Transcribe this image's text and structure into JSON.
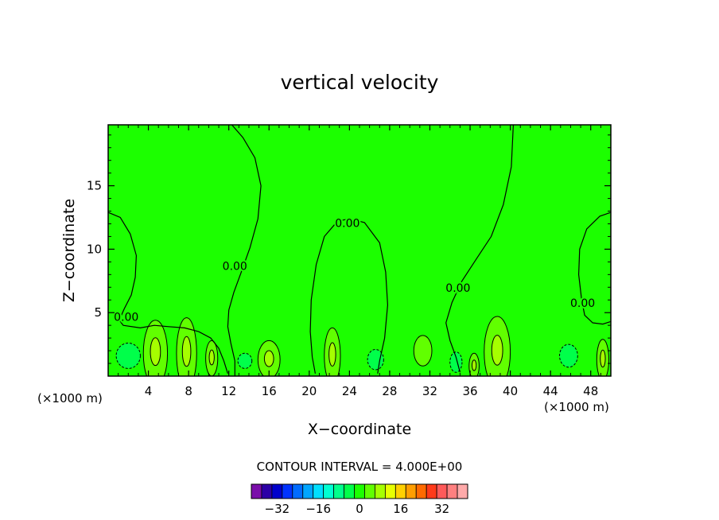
{
  "chart_data": {
    "type": "contour",
    "title": "vertical velocity",
    "xlabel": "X−coordinate",
    "ylabel": "Z−coordinate",
    "x_unit": "(×1000 m)",
    "x_unit_right": "(×1000 m)",
    "xlim": [
      0,
      50
    ],
    "ylim": [
      0,
      19.8
    ],
    "x_ticks": [
      4,
      8,
      12,
      16,
      20,
      24,
      28,
      32,
      36,
      40,
      44,
      48
    ],
    "x_tick_labels": [
      "4",
      "8",
      "12",
      "16",
      "20",
      "24",
      "28",
      "32",
      "36",
      "40",
      "44",
      "48"
    ],
    "y_ticks": [
      5,
      10,
      15
    ],
    "y_tick_labels": [
      "5",
      "10",
      "15"
    ],
    "background_level": 0,
    "contour_labels": [
      {
        "text": "0.00",
        "x": 1.8,
        "y": 4.6
      },
      {
        "text": "0.00",
        "x": 12.6,
        "y": 8.6
      },
      {
        "text": "0.00",
        "x": 23.8,
        "y": 12.0
      },
      {
        "text": "0.00",
        "x": 34.8,
        "y": 6.9
      },
      {
        "text": "0.00",
        "x": 47.2,
        "y": 5.7
      }
    ],
    "zero_contours": [
      [
        [
          0,
          12.9
        ],
        [
          1.2,
          12.5
        ],
        [
          2.2,
          11.2
        ],
        [
          2.8,
          9.5
        ],
        [
          2.7,
          7.8
        ],
        [
          2.3,
          6.4
        ],
        [
          1.6,
          5.3
        ],
        [
          1.1,
          4.4
        ],
        [
          1.5,
          4.0
        ],
        [
          3.2,
          3.8
        ],
        [
          4.6,
          4.0
        ],
        [
          6.0,
          3.9
        ],
        [
          7.6,
          3.8
        ],
        [
          9.0,
          3.5
        ],
        [
          10.2,
          3.0
        ],
        [
          11.0,
          2.2
        ],
        [
          11.5,
          1.2
        ],
        [
          11.9,
          0.2
        ]
      ],
      [
        [
          12.3,
          19.8
        ],
        [
          13.4,
          18.8
        ],
        [
          14.6,
          17.2
        ],
        [
          15.2,
          15.0
        ],
        [
          14.9,
          12.4
        ],
        [
          14.1,
          10.1
        ],
        [
          13.2,
          8.1
        ],
        [
          12.5,
          6.6
        ],
        [
          12.0,
          5.2
        ],
        [
          11.9,
          3.9
        ],
        [
          12.2,
          2.6
        ],
        [
          12.6,
          1.2
        ],
        [
          12.6,
          0.0
        ]
      ],
      [
        [
          20.6,
          0.2
        ],
        [
          20.3,
          1.5
        ],
        [
          20.1,
          3.5
        ],
        [
          20.2,
          6.0
        ],
        [
          20.7,
          8.8
        ],
        [
          21.5,
          11.0
        ],
        [
          22.8,
          12.2
        ],
        [
          24.0,
          12.4
        ],
        [
          25.5,
          12.1
        ],
        [
          27.0,
          10.5
        ],
        [
          27.6,
          8.2
        ],
        [
          27.8,
          5.6
        ],
        [
          27.5,
          3.0
        ],
        [
          27.0,
          1.2
        ],
        [
          26.8,
          0.2
        ]
      ],
      [
        [
          40.3,
          19.8
        ],
        [
          40.1,
          16.5
        ],
        [
          39.3,
          13.5
        ],
        [
          38.1,
          11.0
        ],
        [
          36.6,
          9.2
        ],
        [
          35.2,
          7.5
        ],
        [
          34.2,
          5.8
        ],
        [
          33.6,
          4.2
        ],
        [
          34.0,
          2.8
        ],
        [
          34.6,
          1.5
        ],
        [
          35.0,
          0.3
        ]
      ],
      [
        [
          50,
          12.9
        ],
        [
          48.9,
          12.6
        ],
        [
          47.6,
          11.6
        ],
        [
          46.9,
          10.0
        ],
        [
          46.8,
          8.0
        ],
        [
          47.1,
          6.0
        ],
        [
          47.4,
          4.8
        ],
        [
          48.2,
          4.2
        ],
        [
          49.2,
          4.1
        ],
        [
          50,
          4.3
        ]
      ]
    ],
    "positive_cells": [
      {
        "x": 4.7,
        "y": 1.8,
        "rx": 1.2,
        "ry": 2.6,
        "level": 4,
        "core": 8
      },
      {
        "x": 7.8,
        "y": 1.8,
        "rx": 1.0,
        "ry": 2.8,
        "level": 4,
        "core": 8
      },
      {
        "x": 10.3,
        "y": 1.4,
        "rx": 0.6,
        "ry": 1.4,
        "level": 4,
        "core": 8
      },
      {
        "x": 16.0,
        "y": 1.3,
        "rx": 1.1,
        "ry": 1.5,
        "level": 4,
        "core": 8
      },
      {
        "x": 22.3,
        "y": 1.6,
        "rx": 0.8,
        "ry": 2.2,
        "level": 4,
        "core": 8
      },
      {
        "x": 31.3,
        "y": 2.0,
        "rx": 0.9,
        "ry": 1.2,
        "level": 4,
        "core": 0
      },
      {
        "x": 38.7,
        "y": 1.9,
        "rx": 1.3,
        "ry": 2.8,
        "level": 4,
        "core": 8
      },
      {
        "x": 36.4,
        "y": 0.8,
        "rx": 0.5,
        "ry": 1.0,
        "level": 4,
        "core": 8
      },
      {
        "x": 49.2,
        "y": 1.3,
        "rx": 0.6,
        "ry": 1.6,
        "level": 4,
        "core": 8
      }
    ],
    "negative_cells": [
      {
        "x": 2.0,
        "y": 1.6,
        "rx": 1.2,
        "ry": 1.0,
        "level": -4
      },
      {
        "x": 13.6,
        "y": 1.2,
        "rx": 0.7,
        "ry": 0.6,
        "level": -4
      },
      {
        "x": 26.6,
        "y": 1.3,
        "rx": 0.8,
        "ry": 0.8,
        "level": -4
      },
      {
        "x": 34.6,
        "y": 1.1,
        "rx": 0.6,
        "ry": 0.8,
        "level": -4
      },
      {
        "x": 45.8,
        "y": 1.6,
        "rx": 0.9,
        "ry": 0.9,
        "level": -4
      }
    ],
    "contour_interval_text": "CONTOUR INTERVAL =  4.000E+00",
    "colorbar": {
      "levels": [
        -40,
        -36,
        -32,
        -28,
        -24,
        -20,
        -16,
        -12,
        -8,
        -4,
        0,
        4,
        8,
        12,
        16,
        20,
        24,
        28,
        32,
        36,
        40
      ],
      "colors": [
        "#7a0eaa",
        "#2b00a6",
        "#0000cc",
        "#0033ff",
        "#006cff",
        "#00a6ff",
        "#00dfff",
        "#00ffd2",
        "#00ff8c",
        "#00ff4a",
        "#1cff00",
        "#61ff00",
        "#a6ff00",
        "#e8ff00",
        "#ffd000",
        "#ff9e00",
        "#ff6a00",
        "#ff3a1a",
        "#ff5a5a",
        "#ff8080",
        "#ffaaaa"
      ],
      "tick_values": [
        -32,
        -16,
        0,
        16,
        32
      ],
      "tick_labels": [
        "−32",
        "−16",
        "0",
        "16",
        "32"
      ]
    }
  }
}
